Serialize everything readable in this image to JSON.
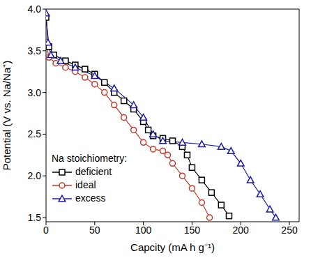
{
  "chart_data": {
    "type": "line",
    "x_label": "Capcity (mA h g⁻¹)",
    "y_label": "Potential (V vs. Na/Na⁺)",
    "xlim": [
      0,
      260
    ],
    "ylim": [
      1.45,
      4.0
    ],
    "xticks": [
      0,
      50,
      100,
      150,
      200,
      250
    ],
    "yticks": [
      1.5,
      {
        "value": 2,
        "label": "2.0"
      },
      2.5,
      {
        "value": 3,
        "label": "3.0"
      },
      3.5,
      {
        "value": 4,
        "label": "4.0"
      }
    ],
    "legend": "lower left",
    "legend_title": "Na stoichiometry:",
    "series": [
      {
        "name": "deficient",
        "color": "#000000",
        "marker": "square",
        "x": [
          0,
          3,
          8,
          20,
          30,
          40,
          50,
          60,
          70,
          80,
          90,
          100,
          105,
          110,
          120,
          130,
          140,
          145,
          150,
          160,
          170,
          180,
          188
        ],
        "values": [
          3.9,
          3.55,
          3.45,
          3.38,
          3.33,
          3.28,
          3.22,
          3.12,
          3.0,
          2.9,
          2.8,
          2.65,
          2.55,
          2.48,
          2.45,
          2.42,
          2.35,
          2.25,
          2.1,
          1.95,
          1.8,
          1.65,
          1.52
        ]
      },
      {
        "name": "ideal",
        "color": "#c0392b",
        "marker": "circle",
        "x": [
          0,
          3,
          10,
          20,
          30,
          40,
          50,
          60,
          70,
          80,
          90,
          100,
          110,
          120,
          125,
          130,
          140,
          150,
          160,
          168
        ],
        "values": [
          3.6,
          3.42,
          3.35,
          3.3,
          3.25,
          3.18,
          3.1,
          3.0,
          2.85,
          2.7,
          2.55,
          2.4,
          2.32,
          2.3,
          2.25,
          2.15,
          2.0,
          1.85,
          1.68,
          1.5
        ]
      },
      {
        "name": "excess",
        "color": "#1a1aa6",
        "marker": "triangle",
        "x": [
          0,
          2,
          5,
          15,
          30,
          50,
          70,
          90,
          100,
          110,
          120,
          140,
          160,
          180,
          190,
          200,
          210,
          220,
          230,
          236
        ],
        "values": [
          3.95,
          3.6,
          3.45,
          3.38,
          3.3,
          3.2,
          3.05,
          2.85,
          2.7,
          2.5,
          2.42,
          2.4,
          2.38,
          2.35,
          2.3,
          2.15,
          1.95,
          1.78,
          1.6,
          1.5
        ]
      }
    ]
  }
}
